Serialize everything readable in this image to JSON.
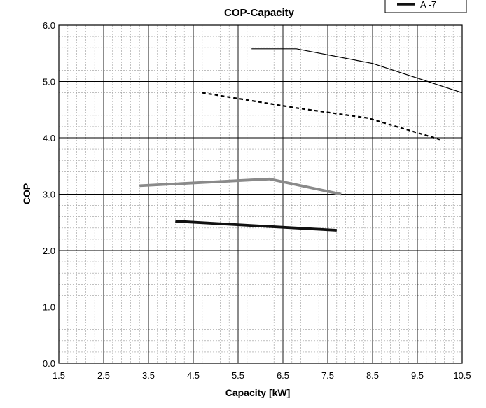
{
  "chart_data": {
    "type": "line",
    "title": "COP-Capacity",
    "xlabel": "Capacity [kW]",
    "ylabel": "COP",
    "xlim": [
      1.5,
      10.5
    ],
    "ylim": [
      0.0,
      6.0
    ],
    "x_ticks": [
      "1.5",
      "2.5",
      "3.5",
      "4.5",
      "5.5",
      "6.5",
      "7.5",
      "8.5",
      "9.5",
      "10.5"
    ],
    "y_ticks": [
      "0.0",
      "1.0",
      "2.0",
      "3.0",
      "4.0",
      "5.0",
      "6.0"
    ],
    "grid": "major solid, minor dashed",
    "legend_position": "top-right (partially cut off)",
    "series": [
      {
        "x": [
          5.8,
          6.8,
          8.5,
          10.5
        ],
        "y": [
          5.58,
          5.58,
          5.32,
          4.8
        ],
        "color": "#000000",
        "style": "thin-solid"
      },
      {
        "x": [
          4.7,
          6.8,
          8.4,
          10.0
        ],
        "y": [
          4.8,
          4.53,
          4.35,
          3.97
        ],
        "color": "#000000",
        "style": "dashed"
      },
      {
        "x": [
          3.3,
          6.2,
          7.8
        ],
        "y": [
          3.15,
          3.27,
          3.0
        ],
        "color": "#8a8a8a",
        "style": "thick-solid"
      },
      {
        "name": "A -7",
        "x": [
          4.1,
          7.7
        ],
        "y": [
          2.52,
          2.36
        ],
        "color": "#111111",
        "style": "thick-solid"
      }
    ]
  }
}
